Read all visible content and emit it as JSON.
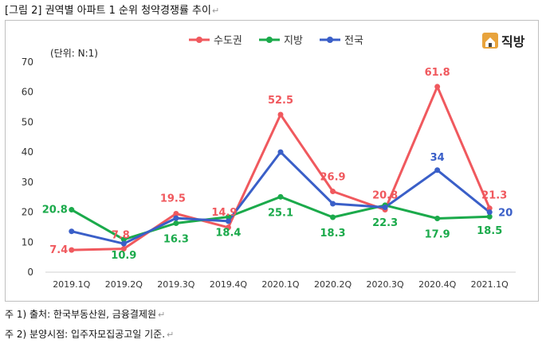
{
  "document": {
    "caption": "[그림 2] 권역별 아파트 1 순위 청약경쟁률 추이",
    "notes": [
      "주 1) 출처: 한국부동산원, 금융결제원",
      "주 2) 분양시점: 입주자모집공고일 기준."
    ],
    "para_mark": "↵"
  },
  "logo": {
    "text": "직방",
    "icon": "house-icon",
    "color": "#E8A33C"
  },
  "chart_data": {
    "type": "line",
    "unit_label": "(단위: N:1)",
    "categories": [
      "2019.1Q",
      "2019.2Q",
      "2019.3Q",
      "2019.4Q",
      "2020.1Q",
      "2020.2Q",
      "2020.3Q",
      "2020.4Q",
      "2021.1Q"
    ],
    "ylim": [
      0,
      70
    ],
    "yticks": [
      0,
      10,
      20,
      30,
      40,
      50,
      60,
      70
    ],
    "grid": false,
    "legend_position": "top",
    "series": [
      {
        "name": "수도권",
        "color": "#F0595E",
        "values": [
          7.4,
          7.8,
          19.5,
          14.9,
          52.5,
          26.9,
          20.8,
          61.8,
          21.3
        ],
        "labels": [
          "7.4",
          "7.8",
          "19.5",
          "14.9",
          "52.5",
          "26.9",
          "20.8",
          "61.8",
          "21.3"
        ]
      },
      {
        "name": "지방",
        "color": "#1BAA4B",
        "values": [
          20.8,
          10.9,
          16.3,
          18.4,
          25.1,
          18.3,
          22.3,
          17.9,
          18.5
        ],
        "labels": [
          "20.8",
          "10.9",
          "16.3",
          "18.4",
          "25.1",
          "18.3",
          "22.3",
          "17.9",
          "18.5"
        ]
      },
      {
        "name": "전국",
        "color": "#3A5FC8",
        "values": [
          13.6,
          9.5,
          18.0,
          17.0,
          40.0,
          22.8,
          21.6,
          34.0,
          20.0
        ],
        "labels": [
          "",
          "",
          "",
          "",
          "",
          "",
          "",
          "34",
          "20"
        ]
      }
    ]
  }
}
